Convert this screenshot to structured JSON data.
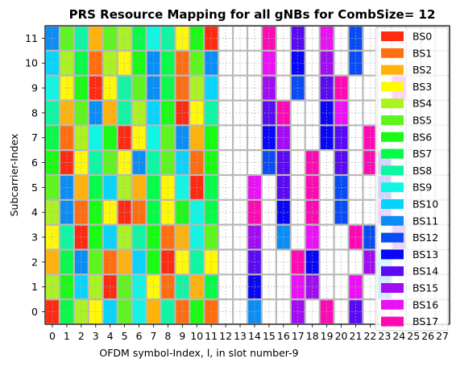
{
  "chart_data": {
    "type": "heatmap",
    "title": "PRS Resource Mapping for all gNBs for CombSize= 12",
    "xlabel": "OFDM symbol-Index, l, in slot number-9",
    "ylabel": "Subcarrier-Index",
    "x_ticks": [
      "0",
      "1",
      "2",
      "3",
      "4",
      "5",
      "6",
      "7",
      "8",
      "9",
      "10",
      "11",
      "12",
      "13",
      "14",
      "15",
      "16",
      "17",
      "18",
      "19",
      "20",
      "21",
      "22",
      "23",
      "24",
      "25",
      "26",
      "27"
    ],
    "y_ticks": [
      "0",
      "1",
      "2",
      "3",
      "4",
      "5",
      "6",
      "7",
      "8",
      "9",
      "10",
      "11"
    ],
    "xlim": [
      -0.5,
      27.5
    ],
    "ylim": [
      -0.5,
      11.5
    ],
    "grid": true,
    "legend_placement": "right",
    "legend": [
      {
        "name": "BS0",
        "color": "#ff2a12"
      },
      {
        "name": "BS1",
        "color": "#ff6d0f"
      },
      {
        "name": "BS2",
        "color": "#ffb30a"
      },
      {
        "name": "BS3",
        "color": "#fff806"
      },
      {
        "name": "BS4",
        "color": "#aaf320"
      },
      {
        "name": "BS5",
        "color": "#5cf61c"
      },
      {
        "name": "BS6",
        "color": "#17fc12"
      },
      {
        "name": "BS7",
        "color": "#06fb48"
      },
      {
        "name": "BS8",
        "color": "#0cf7a3"
      },
      {
        "name": "BS9",
        "color": "#0ff6e4"
      },
      {
        "name": "BS10",
        "color": "#07d4fc"
      },
      {
        "name": "BS11",
        "color": "#0a8df5"
      },
      {
        "name": "BS12",
        "color": "#0a4cf4"
      },
      {
        "name": "BS13",
        "color": "#0a06f6"
      },
      {
        "name": "BS14",
        "color": "#5a0bf2"
      },
      {
        "name": "BS15",
        "color": "#a20cf3"
      },
      {
        "name": "BS16",
        "color": "#eb10f5"
      },
      {
        "name": "BS17",
        "color": "#fd0ab5"
      }
    ],
    "cells": [
      [
        0,
        0,
        0
      ],
      [
        1,
        0,
        7
      ],
      [
        2,
        0,
        4
      ],
      [
        3,
        0,
        3
      ],
      [
        4,
        0,
        10
      ],
      [
        5,
        0,
        5
      ],
      [
        6,
        0,
        9
      ],
      [
        7,
        0,
        2
      ],
      [
        8,
        0,
        8
      ],
      [
        9,
        0,
        1
      ],
      [
        10,
        0,
        6
      ],
      [
        11,
        0,
        1
      ],
      [
        14,
        0,
        11
      ],
      [
        17,
        0,
        15
      ],
      [
        19,
        0,
        17
      ],
      [
        21,
        0,
        14
      ],
      [
        0,
        1,
        4
      ],
      [
        1,
        1,
        6
      ],
      [
        2,
        1,
        10
      ],
      [
        3,
        1,
        4
      ],
      [
        4,
        1,
        0
      ],
      [
        5,
        1,
        5
      ],
      [
        6,
        1,
        9
      ],
      [
        7,
        1,
        3
      ],
      [
        8,
        1,
        1
      ],
      [
        9,
        1,
        8
      ],
      [
        10,
        1,
        2
      ],
      [
        11,
        1,
        7
      ],
      [
        14,
        1,
        13
      ],
      [
        17,
        1,
        16
      ],
      [
        18,
        1,
        15
      ],
      [
        21,
        1,
        16
      ],
      [
        23,
        1,
        11
      ],
      [
        0,
        2,
        2
      ],
      [
        1,
        2,
        7
      ],
      [
        2,
        2,
        11
      ],
      [
        3,
        2,
        5
      ],
      [
        4,
        2,
        1
      ],
      [
        5,
        2,
        2
      ],
      [
        6,
        2,
        10
      ],
      [
        7,
        2,
        6
      ],
      [
        8,
        2,
        0
      ],
      [
        9,
        2,
        3
      ],
      [
        10,
        2,
        8
      ],
      [
        11,
        2,
        3
      ],
      [
        14,
        2,
        14
      ],
      [
        17,
        2,
        17
      ],
      [
        18,
        2,
        13
      ],
      [
        22,
        2,
        15
      ],
      [
        23,
        2,
        10
      ],
      [
        0,
        3,
        3
      ],
      [
        1,
        3,
        8
      ],
      [
        2,
        3,
        0
      ],
      [
        3,
        3,
        6
      ],
      [
        4,
        3,
        10
      ],
      [
        5,
        3,
        4
      ],
      [
        6,
        3,
        8
      ],
      [
        7,
        3,
        6
      ],
      [
        8,
        3,
        1
      ],
      [
        9,
        3,
        2
      ],
      [
        10,
        3,
        9
      ],
      [
        11,
        3,
        5
      ],
      [
        14,
        3,
        15
      ],
      [
        16,
        3,
        11
      ],
      [
        18,
        3,
        16
      ],
      [
        21,
        3,
        17
      ],
      [
        22,
        3,
        12
      ],
      [
        24,
        3,
        15
      ],
      [
        0,
        4,
        4
      ],
      [
        1,
        4,
        11
      ],
      [
        2,
        4,
        1
      ],
      [
        3,
        4,
        6
      ],
      [
        4,
        4,
        3
      ],
      [
        5,
        4,
        0
      ],
      [
        6,
        4,
        1
      ],
      [
        7,
        4,
        7
      ],
      [
        8,
        4,
        3
      ],
      [
        9,
        4,
        6
      ],
      [
        10,
        4,
        9
      ],
      [
        11,
        4,
        7
      ],
      [
        14,
        4,
        17
      ],
      [
        16,
        4,
        13
      ],
      [
        18,
        4,
        17
      ],
      [
        20,
        4,
        12
      ],
      [
        23,
        4,
        15
      ],
      [
        0,
        5,
        5
      ],
      [
        1,
        5,
        11
      ],
      [
        2,
        5,
        2
      ],
      [
        3,
        5,
        7
      ],
      [
        4,
        5,
        10
      ],
      [
        5,
        5,
        4
      ],
      [
        6,
        5,
        2
      ],
      [
        7,
        5,
        7
      ],
      [
        8,
        5,
        3
      ],
      [
        9,
        5,
        9
      ],
      [
        10,
        5,
        0
      ],
      [
        11,
        5,
        7
      ],
      [
        14,
        5,
        16
      ],
      [
        16,
        5,
        14
      ],
      [
        18,
        5,
        17
      ],
      [
        20,
        5,
        12
      ],
      [
        23,
        5,
        13
      ],
      [
        0,
        6,
        6
      ],
      [
        1,
        6,
        0
      ],
      [
        2,
        6,
        3
      ],
      [
        3,
        6,
        8
      ],
      [
        4,
        6,
        5
      ],
      [
        5,
        6,
        3
      ],
      [
        6,
        6,
        11
      ],
      [
        7,
        6,
        8
      ],
      [
        8,
        6,
        5
      ],
      [
        9,
        6,
        10
      ],
      [
        10,
        6,
        1
      ],
      [
        11,
        6,
        6
      ],
      [
        15,
        6,
        12
      ],
      [
        16,
        6,
        14
      ],
      [
        18,
        6,
        17
      ],
      [
        20,
        6,
        14
      ],
      [
        22,
        6,
        17
      ],
      [
        23,
        6,
        13
      ],
      [
        0,
        7,
        7
      ],
      [
        1,
        7,
        1
      ],
      [
        2,
        7,
        4
      ],
      [
        3,
        7,
        9
      ],
      [
        4,
        7,
        6
      ],
      [
        5,
        7,
        0
      ],
      [
        6,
        7,
        3
      ],
      [
        7,
        7,
        9
      ],
      [
        8,
        7,
        5
      ],
      [
        9,
        7,
        11
      ],
      [
        10,
        7,
        2
      ],
      [
        11,
        7,
        6
      ],
      [
        15,
        7,
        13
      ],
      [
        16,
        7,
        15
      ],
      [
        19,
        7,
        13
      ],
      [
        20,
        7,
        14
      ],
      [
        22,
        7,
        17
      ],
      [
        0,
        8,
        8
      ],
      [
        1,
        8,
        2
      ],
      [
        2,
        8,
        5
      ],
      [
        3,
        8,
        11
      ],
      [
        4,
        8,
        2
      ],
      [
        5,
        8,
        8
      ],
      [
        6,
        8,
        4
      ],
      [
        7,
        8,
        10
      ],
      [
        8,
        8,
        6
      ],
      [
        9,
        8,
        0
      ],
      [
        10,
        8,
        3
      ],
      [
        11,
        8,
        8
      ],
      [
        15,
        8,
        14
      ],
      [
        16,
        8,
        17
      ],
      [
        19,
        8,
        13
      ],
      [
        20,
        8,
        16
      ],
      [
        0,
        9,
        9
      ],
      [
        1,
        9,
        3
      ],
      [
        2,
        9,
        6
      ],
      [
        3,
        9,
        0
      ],
      [
        4,
        9,
        3
      ],
      [
        5,
        9,
        8
      ],
      [
        6,
        9,
        5
      ],
      [
        7,
        9,
        11
      ],
      [
        8,
        9,
        7
      ],
      [
        9,
        9,
        1
      ],
      [
        10,
        9,
        4
      ],
      [
        11,
        9,
        10
      ],
      [
        15,
        9,
        15
      ],
      [
        17,
        9,
        12
      ],
      [
        19,
        9,
        14
      ],
      [
        20,
        9,
        17
      ],
      [
        24,
        9,
        16
      ],
      [
        0,
        10,
        10
      ],
      [
        1,
        10,
        4
      ],
      [
        2,
        10,
        7
      ],
      [
        3,
        10,
        1
      ],
      [
        4,
        10,
        4
      ],
      [
        5,
        10,
        3
      ],
      [
        6,
        10,
        6
      ],
      [
        7,
        10,
        11
      ],
      [
        8,
        10,
        7
      ],
      [
        9,
        10,
        1
      ],
      [
        10,
        10,
        5
      ],
      [
        11,
        10,
        11
      ],
      [
        15,
        10,
        16
      ],
      [
        17,
        10,
        13
      ],
      [
        19,
        10,
        15
      ],
      [
        21,
        10,
        12
      ],
      [
        0,
        11,
        11
      ],
      [
        1,
        11,
        5
      ],
      [
        2,
        11,
        8
      ],
      [
        3,
        11,
        2
      ],
      [
        4,
        11,
        5
      ],
      [
        5,
        11,
        4
      ],
      [
        6,
        11,
        7
      ],
      [
        7,
        11,
        9
      ],
      [
        8,
        11,
        8
      ],
      [
        9,
        11,
        3
      ],
      [
        10,
        11,
        6
      ],
      [
        11,
        11,
        0
      ],
      [
        15,
        11,
        17
      ],
      [
        17,
        11,
        14
      ],
      [
        19,
        11,
        16
      ],
      [
        21,
        11,
        12
      ]
    ]
  }
}
